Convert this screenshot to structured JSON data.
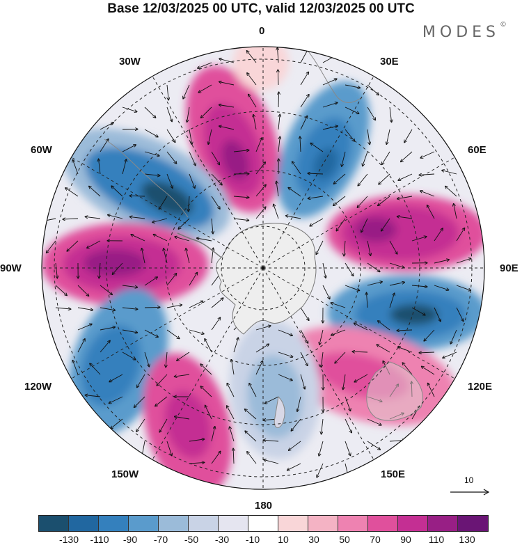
{
  "title": "Base 12/03/2025 00 UTC, valid 12/03/2025 00 UTC",
  "brand": "MODES",
  "brand_mark": "©",
  "map": {
    "projection": "south-polar-stereographic",
    "longitude_labels": {
      "lon_0": "0",
      "lon_30e": "30E",
      "lon_60e": "60E",
      "lon_90e": "90E",
      "lon_120e": "120E",
      "lon_150e": "150E",
      "lon_180": "180",
      "lon_150w": "150W",
      "lon_120w": "120W",
      "lon_90w": "90W",
      "lon_60w": "60W",
      "lon_30w": "30W"
    },
    "reference_vector": {
      "label": "10"
    }
  },
  "colorbar": {
    "colors": [
      "#1b4f6e",
      "#2167a0",
      "#3480bd",
      "#5a9bcc",
      "#9bbbd9",
      "#c9d3e6",
      "#e5e5f0",
      "#ffffff",
      "#f9d6d8",
      "#f4b3c4",
      "#ee82b1",
      "#e0509c",
      "#c42f93",
      "#981f85",
      "#6a1575"
    ],
    "labels": [
      "-130",
      "-110",
      "-90",
      "-70",
      "-50",
      "-30",
      "-10",
      "10",
      "30",
      "50",
      "70",
      "90",
      "110",
      "130"
    ]
  },
  "colors": {
    "land": "#e2e2e2",
    "coast": "#888888"
  }
}
